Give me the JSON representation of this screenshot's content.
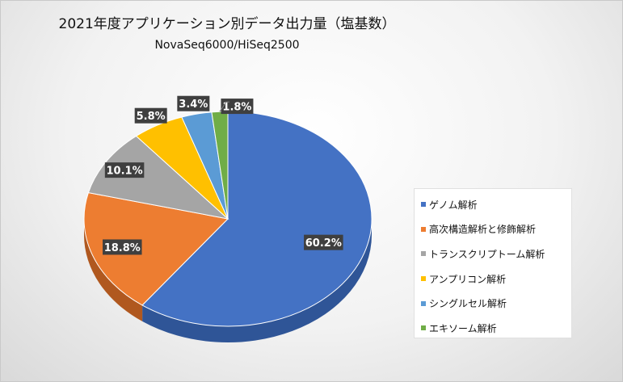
{
  "chart_data": {
    "type": "pie",
    "title": "2021年度アプリケーション別データ出力量（塩基数）",
    "subtitle": "NovaSeq6000/HiSeq2500",
    "legend_position": "right",
    "slices": [
      {
        "name": "ゲノム解析",
        "value": 60.2,
        "label": "60.2%",
        "color": "#4472c4",
        "side_color": "#2f5597"
      },
      {
        "name": "高次構造解析と修飾解析",
        "value": 18.8,
        "label": "18.8%",
        "color": "#ed7d31",
        "side_color": "#b0581f"
      },
      {
        "name": "トランスクリプトーム解析",
        "value": 10.1,
        "label": "10.1%",
        "color": "#a5a5a5",
        "side_color": "#7b7b7b"
      },
      {
        "name": "アンプリコン解析",
        "value": 5.8,
        "label": "5.8%",
        "color": "#ffc000",
        "side_color": "#bf9000"
      },
      {
        "name": "シングルセル解析",
        "value": 3.4,
        "label": "3.4%",
        "color": "#5b9bd5",
        "side_color": "#2e75b6"
      },
      {
        "name": "エキソーム解析",
        "value": 1.8,
        "label": "1.8%",
        "color": "#70ad47",
        "side_color": "#4e7f30"
      }
    ]
  }
}
